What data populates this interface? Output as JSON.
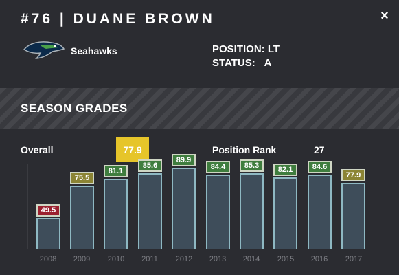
{
  "player": {
    "title": "#76 | DUANE BROWN",
    "team": "Seahawks"
  },
  "close_icon": "×",
  "info": {
    "position_label": "POSITION:",
    "position_value": "LT",
    "status_label": "STATUS:",
    "status_value": "A"
  },
  "section_title": "SEASON GRADES",
  "summary": {
    "overall_label": "Overall",
    "overall_value": "77.9",
    "rank_label": "Position Rank",
    "rank_value": "27"
  },
  "colors": {
    "red": "#9b2230",
    "olive": "#8b8434",
    "green": "#3f7d3e",
    "yellow": "#e6c52a"
  },
  "seasons": [
    {
      "year": "2008",
      "grade": "49.5",
      "color": "red"
    },
    {
      "year": "2009",
      "grade": "75.5",
      "color": "olive"
    },
    {
      "year": "2010",
      "grade": "81.1",
      "color": "green"
    },
    {
      "year": "2011",
      "grade": "85.6",
      "color": "green"
    },
    {
      "year": "2012",
      "grade": "89.9",
      "color": "green"
    },
    {
      "year": "2013",
      "grade": "84.4",
      "color": "green"
    },
    {
      "year": "2014",
      "grade": "85.3",
      "color": "green"
    },
    {
      "year": "2015",
      "grade": "82.1",
      "color": "green"
    },
    {
      "year": "2016",
      "grade": "84.6",
      "color": "green"
    },
    {
      "year": "2017",
      "grade": "77.9",
      "color": "olive"
    }
  ]
}
